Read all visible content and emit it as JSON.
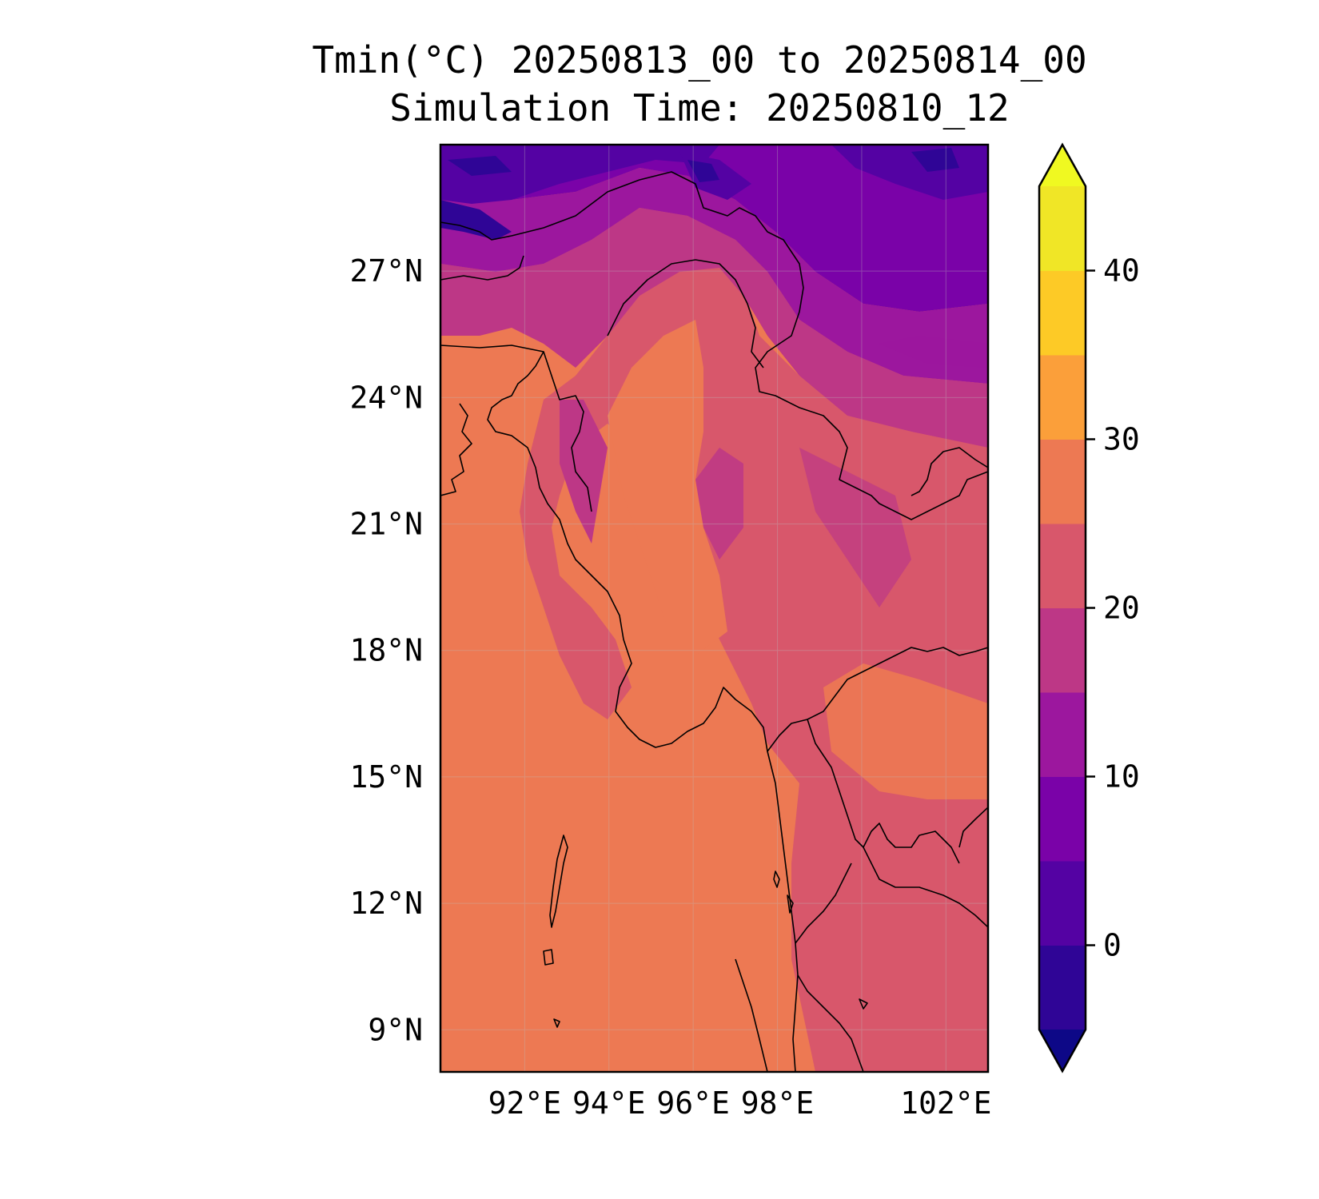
{
  "title": {
    "line1": "Tmin(°C) 20250813_00 to 20250814_00",
    "line2": "Simulation Time: 20250810_12"
  },
  "map": {
    "projection": "PlateCarree",
    "lon_range": [
      90,
      103
    ],
    "lat_range": [
      8,
      30
    ],
    "lat_ticks": [
      {
        "value": 27,
        "label": "27°N"
      },
      {
        "value": 24,
        "label": "24°N"
      },
      {
        "value": 21,
        "label": "21°N"
      },
      {
        "value": 18,
        "label": "18°N"
      },
      {
        "value": 15,
        "label": "15°N"
      },
      {
        "value": 12,
        "label": "12°N"
      },
      {
        "value": 9,
        "label": "9°N"
      }
    ],
    "lon_ticks": [
      {
        "value": 92,
        "label": "92°E"
      },
      {
        "value": 94,
        "label": "94°E"
      },
      {
        "value": 96,
        "label": "96°E"
      },
      {
        "value": 98,
        "label": "98°E"
      },
      {
        "value": 102,
        "label": "102°E"
      }
    ],
    "gridlines": true,
    "features": [
      "coastline",
      "country-borders",
      "temperature-field"
    ]
  },
  "colorbar": {
    "orientation": "vertical",
    "extend": "both",
    "vmin": -5,
    "vmax": 45,
    "level_step": 5,
    "ticks": [
      {
        "value": 40,
        "label": "40"
      },
      {
        "value": 30,
        "label": "30"
      },
      {
        "value": 20,
        "label": "20"
      },
      {
        "value": 10,
        "label": "10"
      },
      {
        "value": 0,
        "label": "0"
      }
    ],
    "colors": {
      "under": "#0d0887",
      "-5_0": "#2f0596",
      "0_5": "#5402a3",
      "5_10": "#7a02a8",
      "10_15": "#9c179e",
      "15_20": "#bd3786",
      "20_25": "#d8576b",
      "25_30": "#ed7953",
      "30_35": "#fb9f3a",
      "35_40": "#fdca26",
      "40_45": "#f0e626",
      "over": "#f0f921"
    }
  }
}
